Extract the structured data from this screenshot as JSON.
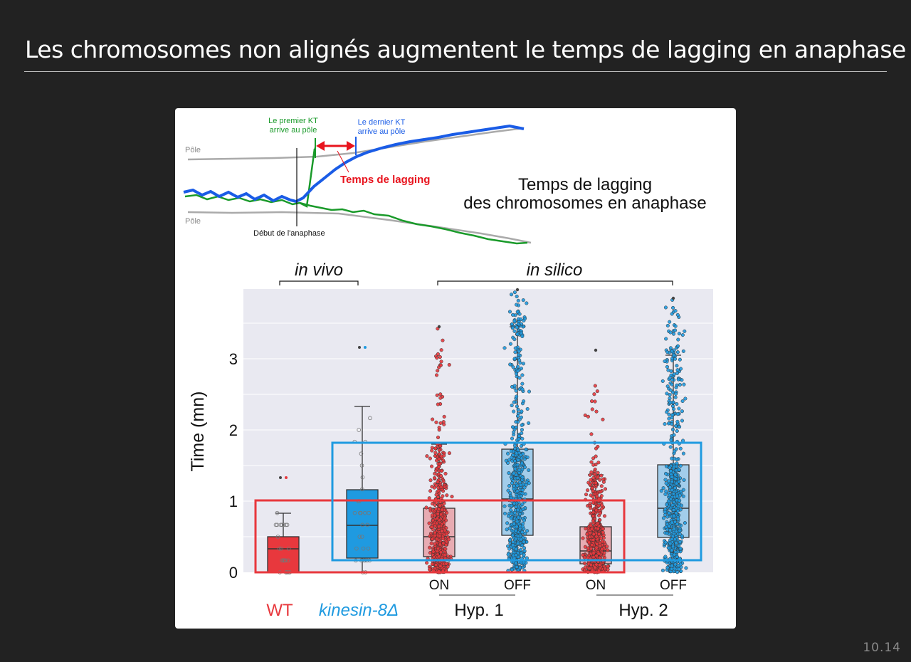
{
  "slide": {
    "title": "Les chromosomes non alignés augmentent le temps de lagging en anaphase",
    "number": "10.14"
  },
  "schematic": {
    "pole_top_label": "Pôle",
    "pole_bottom_label": "Pôle",
    "first_kt_line1": "Le premier KT",
    "first_kt_line2": "arrive au pôle",
    "last_kt_line1": "Le dernier KT",
    "last_kt_line2": "arrive au pôle",
    "lagging_label": "Temps de lagging",
    "anaphase_label": "Début de l'anaphase",
    "heading_line1": "Temps de lagging",
    "heading_line2": "des chromosomes en anaphase"
  },
  "groups": {
    "in_vivo": "in vivo",
    "in_silico": "in silico"
  },
  "legend": {
    "wt": "WT",
    "kinesin": "kinesin-8Δ"
  },
  "hypotheses": {
    "hyp1": "Hyp. 1",
    "hyp2": "Hyp. 2"
  },
  "colors": {
    "red": "#e8383d",
    "blue": "#1f9ae0",
    "background": "#e9e9f1",
    "schematic_blue": "#1a5ce6",
    "schematic_green": "#1a9a2a",
    "schematic_grey": "#aaaaaa",
    "first_kt_text": "#1a9a2a",
    "last_kt_text": "#1a5ce6",
    "lagging_arrow": "#e8141e"
  },
  "chart_data": {
    "type": "box",
    "ylabel": "Time (mn)",
    "ylim": [
      0,
      4
    ],
    "yticks": [
      0,
      1,
      2,
      3
    ],
    "grid": true,
    "categories": [
      "WT (in vivo)",
      "kinesin-8Δ (in vivo)",
      "ON",
      "OFF",
      "ON",
      "OFF"
    ],
    "series": [
      {
        "category": "WT (in vivo)",
        "color": "red",
        "q1": 0.0,
        "median": 0.33,
        "q3": 0.5,
        "whisker_low": 0.0,
        "whisker_high": 0.83,
        "outliers": [
          1.33
        ],
        "n_points": 24
      },
      {
        "category": "kinesin-8Δ (in vivo)",
        "color": "blue",
        "q1": 0.2,
        "median": 0.66,
        "q3": 1.16,
        "whisker_low": 0.0,
        "whisker_high": 2.33,
        "outliers": [
          3.16
        ],
        "n_points": 30
      },
      {
        "category": "ON",
        "group": "Hyp. 1",
        "color": "red",
        "q1": 0.22,
        "median": 0.5,
        "q3": 0.9,
        "whisker_low": 0.0,
        "whisker_high": 1.8,
        "outliers_max": 3.45,
        "n_points": 600
      },
      {
        "category": "OFF",
        "group": "Hyp. 1",
        "color": "blue",
        "q1": 0.52,
        "median": 1.03,
        "q3": 1.73,
        "whisker_low": 0.0,
        "whisker_high": 3.45,
        "outliers_max": 3.97,
        "n_points": 600
      },
      {
        "category": "ON",
        "group": "Hyp. 2",
        "color": "red",
        "q1": 0.12,
        "median": 0.3,
        "q3": 0.64,
        "whisker_low": 0.0,
        "whisker_high": 1.37,
        "outliers_max": 3.12,
        "n_points": 600
      },
      {
        "category": "OFF",
        "group": "Hyp. 2",
        "color": "blue",
        "q1": 0.49,
        "median": 0.9,
        "q3": 1.51,
        "whisker_low": 0.0,
        "whisker_high": 3.05,
        "outliers_max": 3.85,
        "n_points": 600
      }
    ]
  }
}
